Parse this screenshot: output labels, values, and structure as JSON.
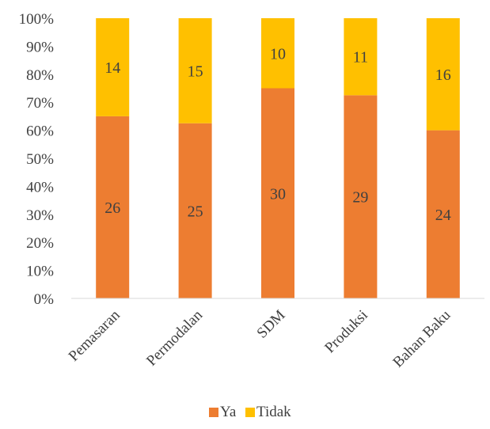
{
  "chart_data": {
    "type": "bar",
    "stacked": "percent",
    "categories": [
      "Pemasaran",
      "Permodalan",
      "SDM",
      "Produksi",
      "Bahan Baku"
    ],
    "series": [
      {
        "name": "Ya",
        "values": [
          26,
          25,
          30,
          29,
          24
        ],
        "color": "#ED7D31"
      },
      {
        "name": "Tidak",
        "values": [
          14,
          15,
          10,
          11,
          16
        ],
        "color": "#FFC000"
      }
    ],
    "yticks": [
      "0%",
      "10%",
      "20%",
      "30%",
      "40%",
      "50%",
      "60%",
      "70%",
      "80%",
      "90%",
      "100%"
    ],
    "ylim": [
      0,
      100
    ],
    "grid": false,
    "legend_position": "bottom",
    "title": "",
    "xlabel": "",
    "ylabel": ""
  }
}
